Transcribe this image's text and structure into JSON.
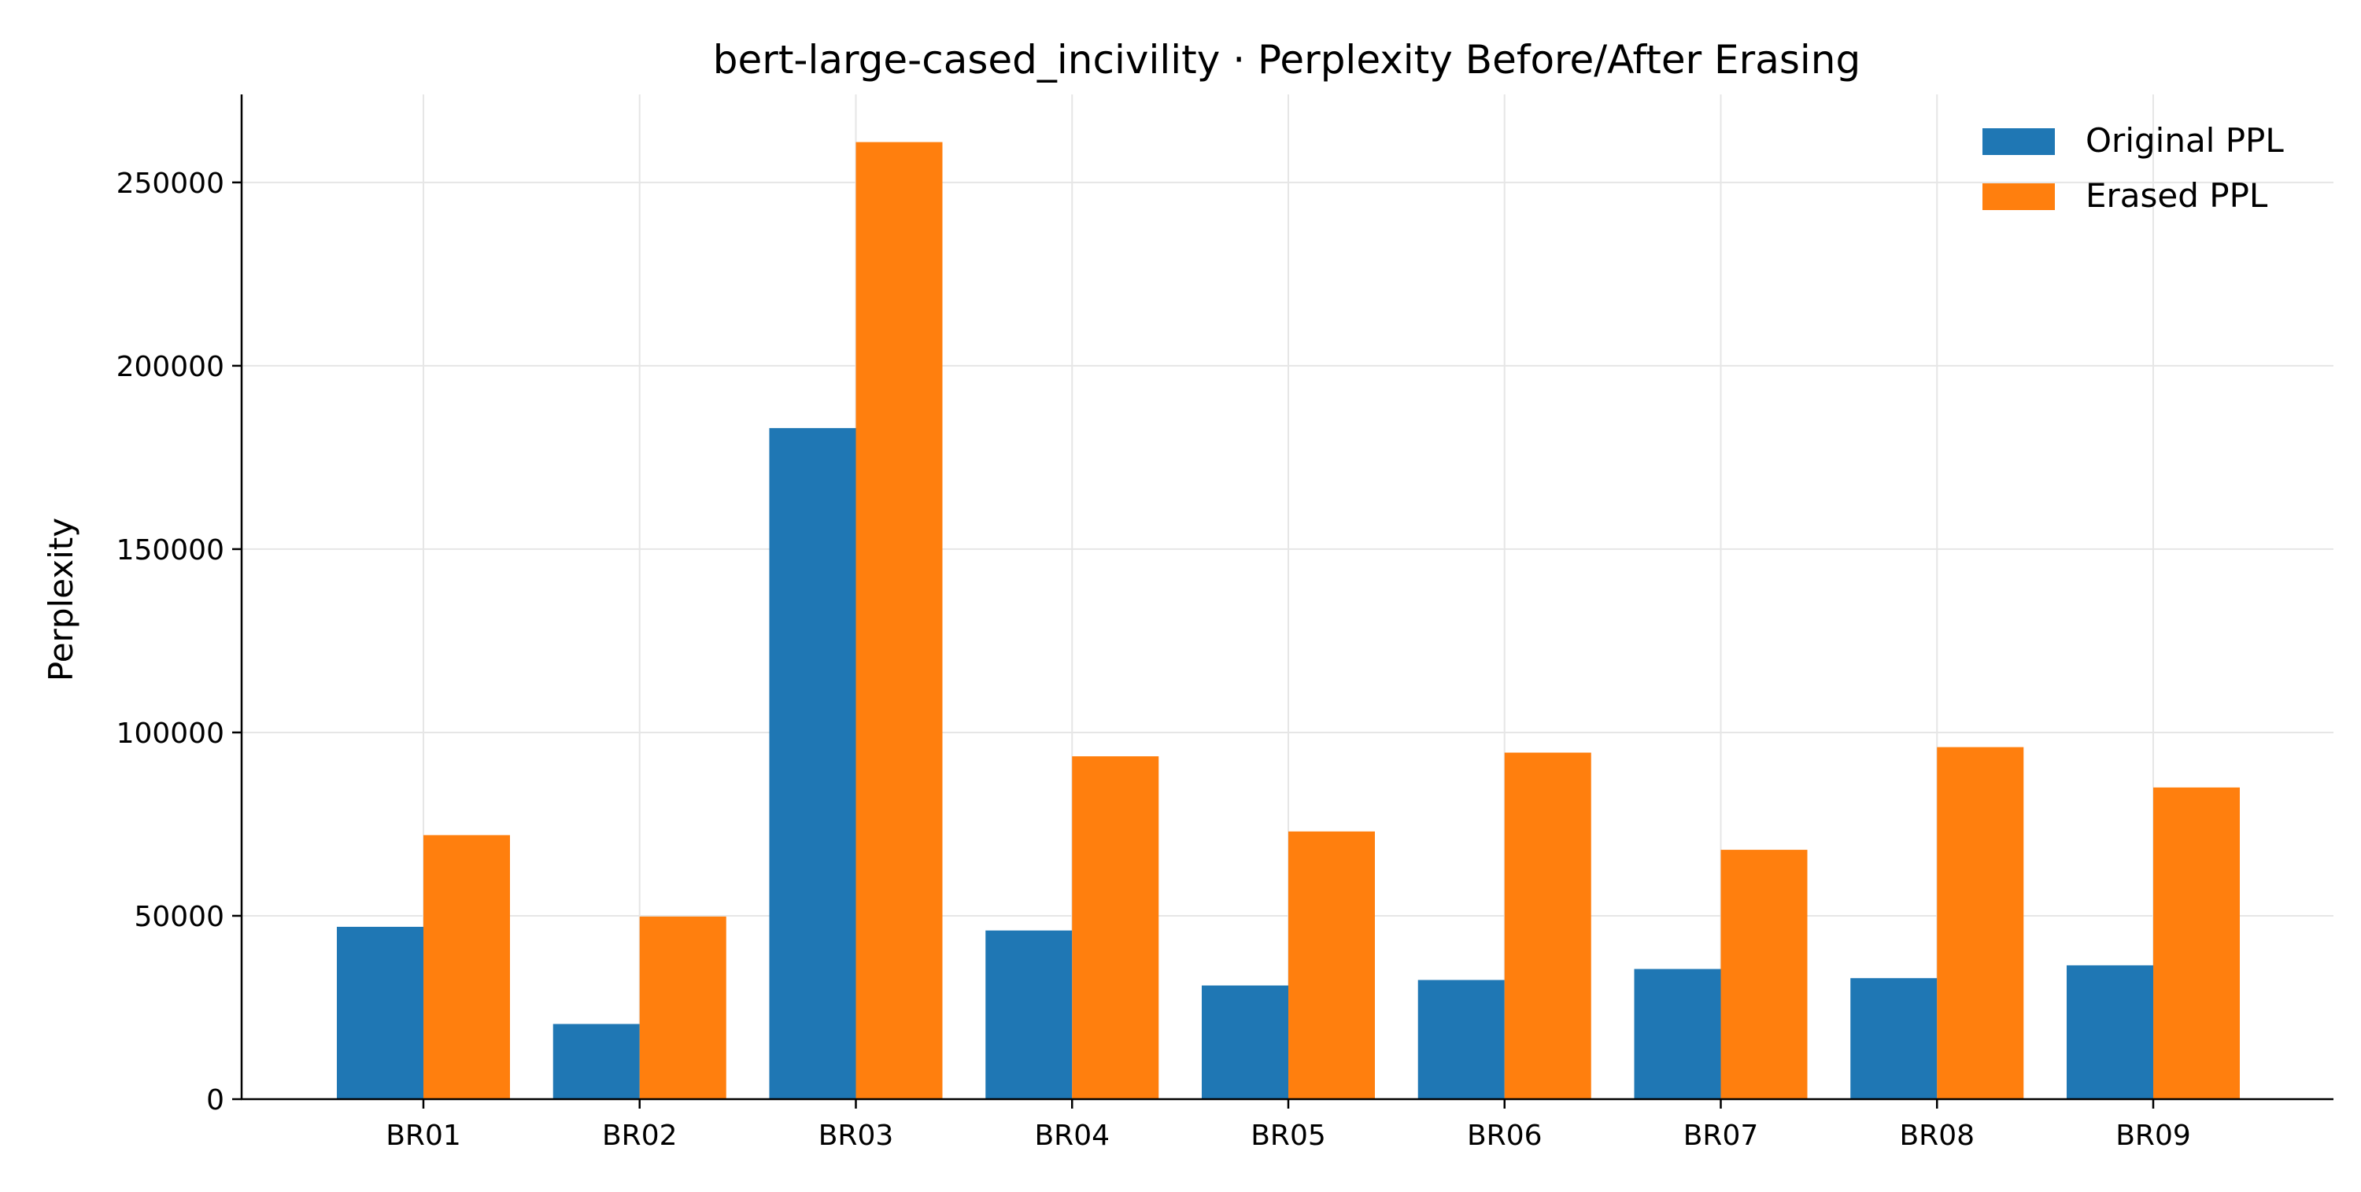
{
  "chart_data": {
    "type": "bar",
    "title": "bert-large-cased_incivility · Perplexity Before/After Erasing",
    "xlabel": "",
    "ylabel": "Perplexity",
    "categories": [
      "BR01",
      "BR02",
      "BR03",
      "BR04",
      "BR05",
      "BR06",
      "BR07",
      "BR08",
      "BR09"
    ],
    "series": [
      {
        "name": "Original PPL",
        "color": "#1f77b4",
        "values": [
          47000,
          20500,
          183000,
          46000,
          31000,
          32500,
          35500,
          33000,
          36500
        ]
      },
      {
        "name": "Erased PPL",
        "color": "#ff7f0e",
        "values": [
          72000,
          49800,
          261000,
          93500,
          73000,
          94500,
          68000,
          96000,
          85000
        ]
      }
    ],
    "yticks": [
      0,
      50000,
      100000,
      150000,
      200000,
      250000
    ],
    "ylim": [
      0,
      274000
    ],
    "grid": true,
    "legend_position": "top-right"
  }
}
